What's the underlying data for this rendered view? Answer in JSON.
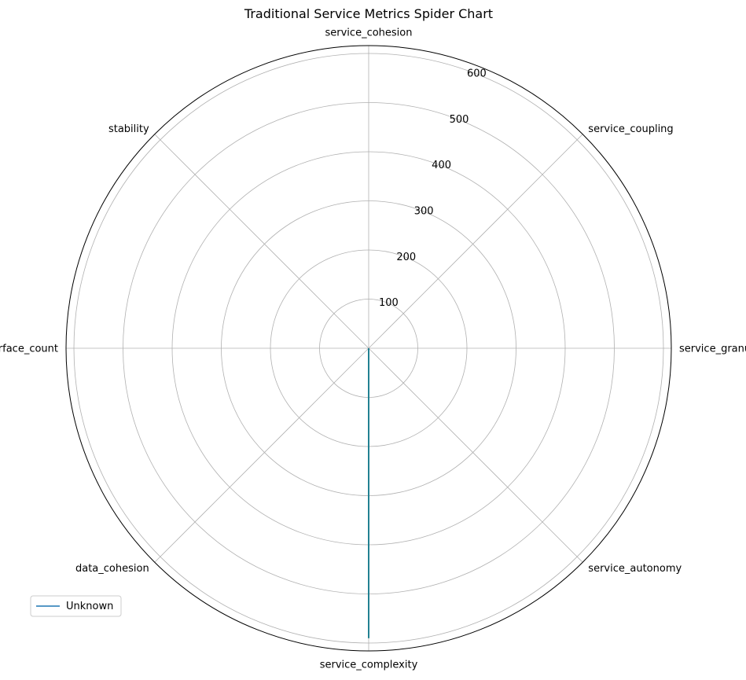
{
  "chart_data": {
    "type": "radar",
    "title": "Traditional Service Metrics Spider Chart",
    "axes": [
      "service_cohesion",
      "service_coupling",
      "service_granularity",
      "service_autonomy",
      "service_complexity",
      "data_cohesion",
      "interface_count",
      "stability"
    ],
    "r_ticks": [
      100,
      200,
      300,
      400,
      500,
      600
    ],
    "r_max": 600,
    "grid": true,
    "legend_position": "lower-left",
    "series": [
      {
        "name": "Unknown",
        "color": "#1f77b4",
        "values": [
          0,
          0,
          0,
          0,
          590,
          0,
          0,
          0
        ]
      }
    ],
    "overlay_series_color": "#2ca02c"
  }
}
